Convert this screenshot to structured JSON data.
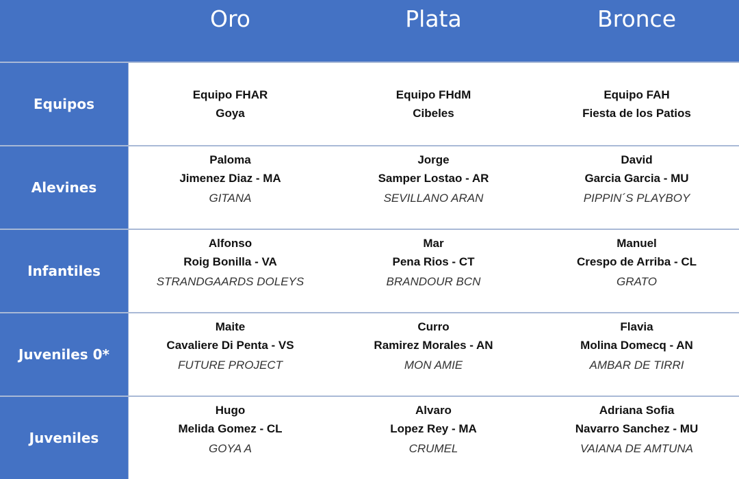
{
  "header": {
    "columns": [
      "Oro",
      "Plata",
      "Bronce"
    ]
  },
  "theme": {
    "accent": "#4472C4"
  },
  "rows": [
    {
      "label": "Equipos",
      "cells": [
        {
          "team": "Equipo FHAR",
          "name": "Goya"
        },
        {
          "team": "Equipo FHdM",
          "name": "Cibeles"
        },
        {
          "team": "Equipo FAH",
          "name": "Fiesta de los Patios"
        }
      ]
    },
    {
      "label": "Alevines",
      "cells": [
        {
          "first": "Paloma",
          "last": "Jimenez Diaz - MA",
          "horse": "GITANA"
        },
        {
          "first": "Jorge",
          "last": "Samper Lostao - AR",
          "horse": "SEVILLANO ARAN"
        },
        {
          "first": "David",
          "last": "Garcia Garcia - MU",
          "horse": "PIPPIN´S PLAYBOY"
        }
      ]
    },
    {
      "label": "Infantiles",
      "cells": [
        {
          "first": "Alfonso",
          "last": "Roig Bonilla - VA",
          "horse": "STRANDGAARDS DOLEYS"
        },
        {
          "first": "Mar",
          "last": "Pena Rios - CT",
          "horse": "BRANDOUR BCN"
        },
        {
          "first": "Manuel",
          "last": "Crespo de Arriba - CL",
          "horse": "GRATO"
        }
      ]
    },
    {
      "label": "Juveniles 0*",
      "cells": [
        {
          "first": "Maite",
          "last": "Cavaliere Di Penta - VS",
          "horse": "FUTURE PROJECT"
        },
        {
          "first": "Curro",
          "last": "Ramirez Morales - AN",
          "horse": "MON AMIE"
        },
        {
          "first": "Flavia",
          "last": "Molina Domecq - AN",
          "horse": "AMBAR DE TIRRI"
        }
      ]
    },
    {
      "label": "Juveniles",
      "cells": [
        {
          "first": "Hugo",
          "last": "Melida Gomez - CL",
          "horse": "GOYA A"
        },
        {
          "first": "Alvaro",
          "last": "Lopez Rey - MA",
          "horse": "CRUMEL"
        },
        {
          "first": "Adriana Sofia",
          "last": "Navarro Sanchez - MU",
          "horse": "VAIANA DE AMTUNA"
        }
      ]
    }
  ]
}
